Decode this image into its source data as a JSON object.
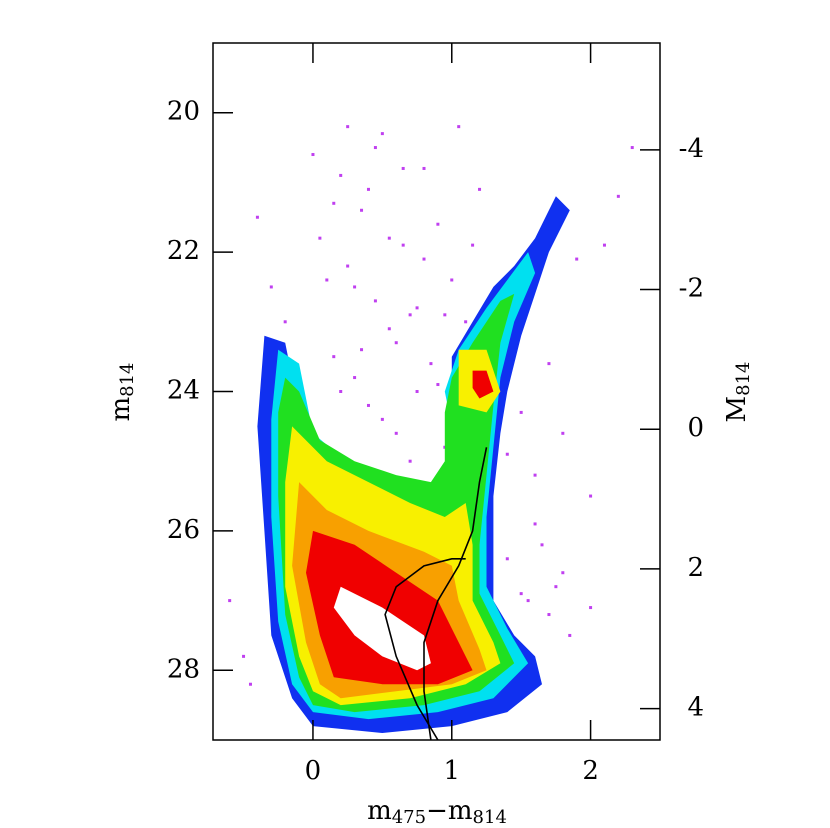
{
  "chart_data": {
    "type": "hess",
    "xlabel": [
      "m",
      "475",
      "−m",
      "814"
    ],
    "ylabel": [
      "m",
      "814"
    ],
    "y2label": [
      "M",
      "814"
    ],
    "xlim": [
      -0.72,
      2.5
    ],
    "ylim": [
      19,
      29
    ],
    "y2lim": [
      -5.53,
      4.45
    ],
    "xticks": [
      0,
      1,
      2
    ],
    "yticks": [
      20,
      22,
      24,
      26,
      28
    ],
    "y2ticks": [
      -4,
      -2,
      0,
      2,
      4
    ],
    "points": {
      "color": "#c040f0",
      "x": [
        -0.4,
        -0.3,
        -0.2,
        0.0,
        0.05,
        0.1,
        0.15,
        0.2,
        0.25,
        0.3,
        0.35,
        0.4,
        0.45,
        0.5,
        0.55,
        0.6,
        0.65,
        0.7,
        0.75,
        0.8,
        0.85,
        0.9,
        0.95,
        1.0,
        1.05,
        1.1,
        1.15,
        1.2,
        1.3,
        1.4,
        1.5,
        1.6,
        1.7,
        1.8,
        1.9,
        2.0,
        2.1,
        2.2,
        2.3,
        0.1,
        0.2,
        0.3,
        0.4,
        0.5,
        0.6,
        0.7,
        0.8,
        0.9,
        1.0,
        0.15,
        0.35,
        0.55,
        0.75,
        0.95,
        1.4,
        1.5,
        1.6,
        1.7,
        1.8,
        1.55,
        1.65,
        1.75,
        1.85,
        2.0,
        -0.5,
        -0.6,
        -0.45,
        0.45,
        0.65,
        0.25
      ],
      "y": [
        21.5,
        22.5,
        23.0,
        20.6,
        21.8,
        22.4,
        23.5,
        20.9,
        22.2,
        23.8,
        21.4,
        24.2,
        22.7,
        20.3,
        23.1,
        24.6,
        21.9,
        22.9,
        24.0,
        20.8,
        23.6,
        21.6,
        24.8,
        22.4,
        20.2,
        23.0,
        21.9,
        21.1,
        22.9,
        24.9,
        24.3,
        25.2,
        23.6,
        24.6,
        22.1,
        25.5,
        21.9,
        21.2,
        20.5,
        25.1,
        24.0,
        22.5,
        21.1,
        24.4,
        23.3,
        25.0,
        22.1,
        23.9,
        24.9,
        21.3,
        23.4,
        21.8,
        22.8,
        22.9,
        26.4,
        26.9,
        25.9,
        27.2,
        26.6,
        27.0,
        26.2,
        26.8,
        27.5,
        27.1,
        27.8,
        27.0,
        28.2,
        20.5,
        20.8,
        20.2
      ]
    },
    "contours": [
      {
        "color": "#1030f0",
        "x": [
          -0.35,
          -0.2,
          -0.1,
          0.0,
          0.3,
          0.6,
          0.9,
          1.05,
          1.05,
          1.0,
          1.0,
          1.15,
          1.3,
          1.45,
          1.6,
          1.7,
          1.75,
          1.85,
          1.7,
          1.6,
          1.5,
          1.4,
          1.35,
          1.3,
          1.3,
          1.3,
          1.45,
          1.6,
          1.65,
          1.4,
          1.0,
          0.5,
          0.0,
          -0.15,
          -0.3,
          -0.35,
          -0.4
        ],
        "y": [
          23.2,
          23.3,
          24.3,
          24.9,
          25.3,
          25.6,
          25.7,
          25.4,
          24.5,
          24.0,
          23.5,
          23.0,
          22.5,
          22.2,
          21.8,
          21.4,
          21.2,
          21.4,
          22.0,
          22.6,
          23.2,
          24.0,
          24.6,
          25.5,
          26.3,
          27.0,
          27.5,
          27.8,
          28.2,
          28.6,
          28.8,
          28.9,
          28.8,
          28.4,
          27.5,
          26.0,
          24.5
        ]
      },
      {
        "color": "#00e0f0",
        "x": [
          -0.25,
          -0.1,
          0.0,
          0.3,
          0.6,
          0.9,
          1.0,
          1.0,
          0.95,
          1.05,
          1.25,
          1.4,
          1.55,
          1.6,
          1.45,
          1.35,
          1.3,
          1.25,
          1.25,
          1.4,
          1.55,
          1.3,
          0.9,
          0.4,
          0.0,
          -0.15,
          -0.25,
          -0.3,
          -0.3
        ],
        "y": [
          23.4,
          23.6,
          24.6,
          25.1,
          25.4,
          25.5,
          25.2,
          24.5,
          24.0,
          23.4,
          22.8,
          22.4,
          22.0,
          22.3,
          23.0,
          23.8,
          24.8,
          25.8,
          26.8,
          27.4,
          27.9,
          28.4,
          28.6,
          28.7,
          28.6,
          28.2,
          27.3,
          25.8,
          24.4
        ]
      },
      {
        "color": "#20e020",
        "x": [
          -0.2,
          -0.1,
          0.05,
          0.3,
          0.6,
          0.85,
          0.95,
          0.95,
          1.0,
          1.15,
          1.35,
          1.45,
          1.35,
          1.3,
          1.25,
          1.2,
          1.2,
          1.35,
          1.45,
          1.2,
          0.8,
          0.3,
          0.0,
          -0.1,
          -0.2,
          -0.25,
          -0.25
        ],
        "y": [
          23.8,
          24.0,
          24.7,
          25.0,
          25.2,
          25.3,
          25.0,
          24.3,
          23.8,
          23.3,
          22.7,
          22.6,
          23.3,
          24.2,
          25.2,
          26.2,
          26.9,
          27.5,
          27.9,
          28.3,
          28.5,
          28.6,
          28.5,
          28.1,
          27.2,
          25.5,
          24.3
        ]
      },
      {
        "color": "#f8f000",
        "x": [
          1.05,
          1.25,
          1.35,
          1.25,
          1.05
        ],
        "y": [
          23.4,
          23.4,
          24.0,
          24.3,
          24.2
        ]
      },
      {
        "color": "#f8f000",
        "x": [
          -0.15,
          0.1,
          0.4,
          0.7,
          0.95,
          1.1,
          1.15,
          1.15,
          1.3,
          1.35,
          1.1,
          0.7,
          0.2,
          0.0,
          -0.1,
          -0.2,
          -0.2
        ],
        "y": [
          24.5,
          25.0,
          25.3,
          25.6,
          25.8,
          25.6,
          26.2,
          27.0,
          27.6,
          27.9,
          28.2,
          28.4,
          28.5,
          28.3,
          27.8,
          26.8,
          25.3
        ]
      },
      {
        "color": "#f8a000",
        "x": [
          -0.1,
          0.1,
          0.4,
          0.8,
          1.0,
          1.05,
          1.2,
          1.25,
          1.0,
          0.6,
          0.2,
          0.05,
          -0.05,
          -0.15
        ],
        "y": [
          25.3,
          25.7,
          26.0,
          26.3,
          26.5,
          27.0,
          27.7,
          28.0,
          28.2,
          28.3,
          28.4,
          28.2,
          27.6,
          26.5
        ]
      },
      {
        "color": "#f00000",
        "x": [
          0.0,
          0.3,
          0.6,
          0.9,
          1.05,
          1.15,
          0.9,
          0.5,
          0.15,
          0.05,
          -0.05
        ],
        "y": [
          26.0,
          26.2,
          26.6,
          27.0,
          27.6,
          28.0,
          28.2,
          28.2,
          28.1,
          27.5,
          26.6
        ]
      },
      {
        "color": "#f00000",
        "x": [
          1.15,
          1.25,
          1.3,
          1.2,
          1.15
        ],
        "y": [
          23.7,
          23.7,
          24.0,
          24.1,
          23.95
        ]
      },
      {
        "color": "#ffffff",
        "x": [
          0.2,
          0.5,
          0.8,
          0.85,
          0.75,
          0.5,
          0.3,
          0.15
        ],
        "y": [
          26.8,
          27.1,
          27.5,
          27.9,
          28.0,
          27.8,
          27.5,
          27.1
        ]
      }
    ],
    "isochrones": [
      {
        "color": "#000000",
        "x": [
          0.9,
          0.75,
          0.6,
          0.52,
          0.6,
          0.8,
          1.0,
          1.1
        ],
        "y": [
          29.0,
          28.5,
          27.8,
          27.2,
          26.8,
          26.5,
          26.4,
          26.4
        ]
      },
      {
        "color": "#000000",
        "x": [
          0.85,
          0.8,
          0.8,
          0.9,
          1.05,
          1.15,
          1.2,
          1.25
        ],
        "y": [
          29.0,
          28.3,
          27.6,
          27.0,
          26.5,
          26.0,
          25.3,
          24.8
        ]
      }
    ]
  }
}
